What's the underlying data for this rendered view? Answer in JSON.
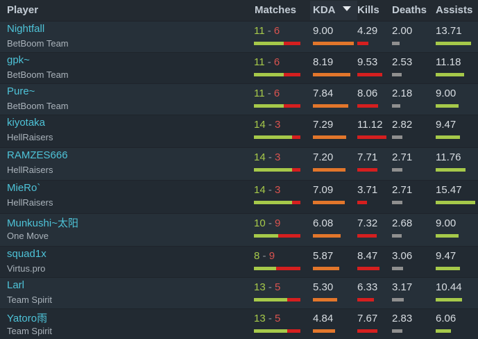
{
  "header": {
    "player": "Player",
    "matches": "Matches",
    "kda": "KDA",
    "kills": "Kills",
    "deaths": "Deaths",
    "assists": "Assists",
    "sort_icon": "sort-descending-icon"
  },
  "colors": {
    "player_name": "#4ec3d8",
    "wins": "#a6c94a",
    "losses": "#d9534f",
    "kda_bar": "#e2762b",
    "kills_bar": "#d51f1f",
    "deaths_bar": "#8f8f8f",
    "assists_bar": "#a6c94a"
  },
  "rows": [
    {
      "player": "Nightfall",
      "team": "BetBoom Team",
      "wins": "11",
      "sep": "-",
      "losses": "6",
      "kda": "9.00",
      "kills": "4.29",
      "deaths": "2.00",
      "assists": "13.71"
    },
    {
      "player": "gpk~",
      "team": "BetBoom Team",
      "wins": "11",
      "sep": "-",
      "losses": "6",
      "kda": "8.19",
      "kills": "9.53",
      "deaths": "2.53",
      "assists": "11.18"
    },
    {
      "player": "Pure~",
      "team": "BetBoom Team",
      "wins": "11",
      "sep": "-",
      "losses": "6",
      "kda": "7.84",
      "kills": "8.06",
      "deaths": "2.18",
      "assists": "9.00"
    },
    {
      "player": "kiyotaka",
      "team": "HellRaisers",
      "wins": "14",
      "sep": "-",
      "losses": "3",
      "kda": "7.29",
      "kills": "11.12",
      "deaths": "2.82",
      "assists": "9.47"
    },
    {
      "player": "RAMZES666",
      "team": "HellRaisers",
      "wins": "14",
      "sep": "-",
      "losses": "3",
      "kda": "7.20",
      "kills": "7.71",
      "deaths": "2.71",
      "assists": "11.76"
    },
    {
      "player": "MieRo`",
      "team": "HellRaisers",
      "wins": "14",
      "sep": "-",
      "losses": "3",
      "kda": "7.09",
      "kills": "3.71",
      "deaths": "2.71",
      "assists": "15.47"
    },
    {
      "player": "Munkushi~太阳",
      "team": "One Move",
      "wins": "10",
      "sep": "-",
      "losses": "9",
      "kda": "6.08",
      "kills": "7.32",
      "deaths": "2.68",
      "assists": "9.00"
    },
    {
      "player": "squad1x",
      "team": "Virtus.pro",
      "wins": "8",
      "sep": "-",
      "losses": "9",
      "kda": "5.87",
      "kills": "8.47",
      "deaths": "3.06",
      "assists": "9.47"
    },
    {
      "player": "Larl",
      "team": "Team Spirit",
      "wins": "13",
      "sep": "-",
      "losses": "5",
      "kda": "5.30",
      "kills": "6.33",
      "deaths": "3.17",
      "assists": "10.44"
    },
    {
      "player": "Yatoro雨",
      "team": "Team Spirit",
      "wins": "13",
      "sep": "-",
      "losses": "5",
      "kda": "4.84",
      "kills": "7.67",
      "deaths": "2.83",
      "assists": "6.06"
    }
  ]
}
